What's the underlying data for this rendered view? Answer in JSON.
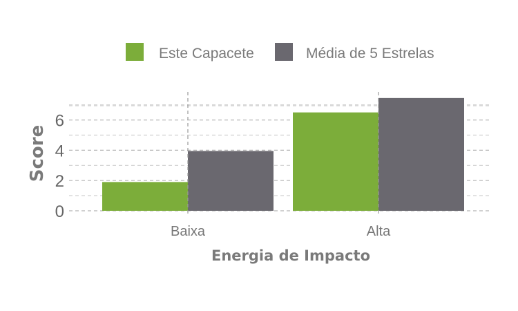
{
  "chart_data": {
    "type": "bar",
    "categories": [
      "Baixa",
      "Alta"
    ],
    "series": [
      {
        "name": "Este Capacete",
        "values": [
          1.9,
          6.5
        ],
        "color": "#7cad3a"
      },
      {
        "name": "Média de 5 Estrelas",
        "values": [
          3.95,
          7.45
        ],
        "color": "#6a686f"
      }
    ],
    "xlabel": "Energia de Impacto",
    "ylabel": "Score",
    "ylim": [
      0,
      7.5
    ],
    "yticks": [
      0,
      2,
      4,
      6
    ],
    "grid": true,
    "legend_position": "top"
  }
}
